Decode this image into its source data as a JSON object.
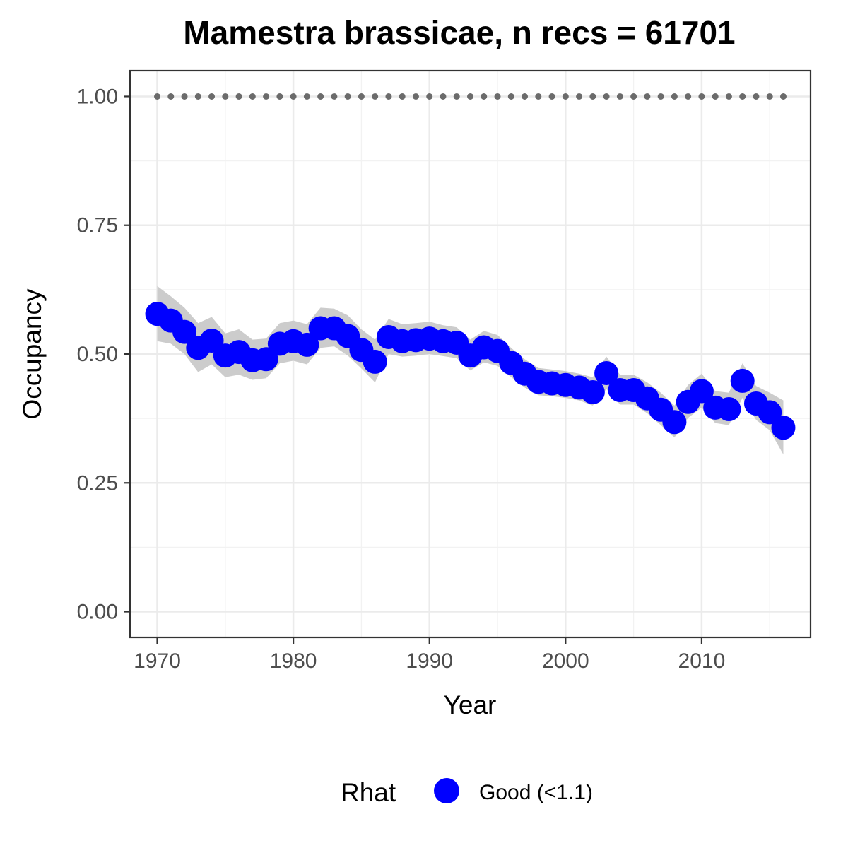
{
  "chart_data": {
    "type": "line",
    "title": "Mamestra brassicae, n recs = 61701",
    "xlabel": "Year",
    "ylabel": "Occupancy",
    "xlim": [
      1968,
      2018
    ],
    "ylim": [
      -0.05,
      1.05
    ],
    "x_ticks": [
      1970,
      1980,
      1990,
      2000,
      2010
    ],
    "y_ticks": [
      0.0,
      0.25,
      0.5,
      0.75,
      1.0
    ],
    "y_tick_labels": [
      "0.00",
      "0.25",
      "0.50",
      "0.75",
      "1.00"
    ],
    "grid": true,
    "x": [
      1970,
      1971,
      1972,
      1973,
      1974,
      1975,
      1976,
      1977,
      1978,
      1979,
      1980,
      1981,
      1982,
      1983,
      1984,
      1985,
      1986,
      1987,
      1988,
      1989,
      1990,
      1991,
      1992,
      1993,
      1994,
      1995,
      1996,
      1997,
      1998,
      1999,
      2000,
      2001,
      2002,
      2003,
      2004,
      2005,
      2006,
      2007,
      2008,
      2009,
      2010,
      2011,
      2012,
      2013,
      2014,
      2015,
      2016
    ],
    "series": [
      {
        "name": "Good (<1.1)",
        "color": "#0000ff",
        "values": [
          0.578,
          0.565,
          0.543,
          0.512,
          0.526,
          0.497,
          0.504,
          0.488,
          0.49,
          0.52,
          0.525,
          0.518,
          0.55,
          0.55,
          0.535,
          0.508,
          0.485,
          0.533,
          0.525,
          0.527,
          0.53,
          0.525,
          0.522,
          0.497,
          0.513,
          0.506,
          0.483,
          0.462,
          0.446,
          0.443,
          0.44,
          0.435,
          0.426,
          0.463,
          0.43,
          0.43,
          0.414,
          0.392,
          0.368,
          0.407,
          0.428,
          0.396,
          0.393,
          0.448,
          0.404,
          0.387,
          0.357
        ],
        "lower": [
          0.525,
          0.52,
          0.5,
          0.465,
          0.48,
          0.455,
          0.46,
          0.45,
          0.453,
          0.482,
          0.487,
          0.48,
          0.512,
          0.515,
          0.497,
          0.472,
          0.445,
          0.5,
          0.495,
          0.497,
          0.5,
          0.496,
          0.492,
          0.468,
          0.484,
          0.477,
          0.455,
          0.435,
          0.42,
          0.418,
          0.415,
          0.41,
          0.4,
          0.432,
          0.402,
          0.402,
          0.385,
          0.362,
          0.338,
          0.376,
          0.396,
          0.366,
          0.362,
          0.415,
          0.372,
          0.352,
          0.305
        ],
        "upper": [
          0.632,
          0.612,
          0.59,
          0.56,
          0.572,
          0.54,
          0.548,
          0.528,
          0.53,
          0.56,
          0.565,
          0.558,
          0.59,
          0.588,
          0.575,
          0.548,
          0.528,
          0.568,
          0.558,
          0.56,
          0.563,
          0.556,
          0.552,
          0.528,
          0.545,
          0.537,
          0.512,
          0.49,
          0.473,
          0.47,
          0.467,
          0.462,
          0.455,
          0.495,
          0.46,
          0.46,
          0.445,
          0.425,
          0.4,
          0.44,
          0.462,
          0.428,
          0.425,
          0.482,
          0.438,
          0.425,
          0.41
        ]
      }
    ],
    "reference_points": {
      "y": 1.0,
      "color": "#6b6b6b"
    },
    "ribbon_color": "#cccccc",
    "legend": {
      "title": "Rhat",
      "position": "bottom",
      "entries": [
        {
          "label": "Good (<1.1)",
          "color": "#0000ff"
        }
      ]
    }
  }
}
